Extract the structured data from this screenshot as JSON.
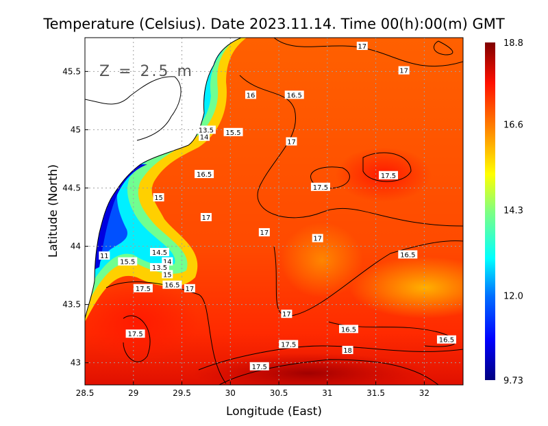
{
  "chart_data": {
    "type": "heatmap",
    "title": "Temperature (Celsius). Date 2023.11.14. Time 00(h):00(m) GMT",
    "annotation": "Z = 2.5 m",
    "xlabel": "Longitude (East)",
    "ylabel": "Latitude (North)",
    "xlim": [
      28.5,
      32.4
    ],
    "ylim": [
      42.81,
      45.79
    ],
    "xticks": [
      "28.5",
      "29",
      "29.5",
      "30",
      "30.5",
      "31",
      "31.5",
      "32"
    ],
    "xtick_values": [
      28.5,
      29,
      29.5,
      30,
      30.5,
      31,
      31.5,
      32
    ],
    "yticks": [
      "45.5",
      "45",
      "44.5",
      "44",
      "43.5",
      "43"
    ],
    "ytick_values": [
      45.5,
      45,
      44.5,
      44,
      43.5,
      43
    ],
    "grid": true,
    "colorbar": {
      "min": 9.73,
      "max": 18.8,
      "labels": [
        "18.8",
        "16.6",
        "14.3",
        "12.0",
        "9.73"
      ],
      "label_values": [
        18.8,
        16.6,
        14.3,
        12.0,
        9.73
      ],
      "colors": [
        "#00007f",
        "#0000ff",
        "#0080ff",
        "#00ffff",
        "#80ff80",
        "#ffff00",
        "#ff8000",
        "#ff0000",
        "#7f0000"
      ]
    },
    "contour_labels": [
      {
        "text": "17",
        "lon": 31.36,
        "lat": 45.72
      },
      {
        "text": "17",
        "lon": 31.79,
        "lat": 45.51
      },
      {
        "text": "16",
        "lon": 30.21,
        "lat": 45.3
      },
      {
        "text": "16.5",
        "lon": 30.66,
        "lat": 45.3
      },
      {
        "text": "13.5",
        "lon": 29.75,
        "lat": 45.0
      },
      {
        "text": "14",
        "lon": 29.73,
        "lat": 44.94
      },
      {
        "text": "15.5",
        "lon": 30.03,
        "lat": 44.98
      },
      {
        "text": "17",
        "lon": 30.63,
        "lat": 44.9
      },
      {
        "text": "16.5",
        "lon": 29.73,
        "lat": 44.62
      },
      {
        "text": "17.5",
        "lon": 30.93,
        "lat": 44.51
      },
      {
        "text": "17.5",
        "lon": 31.63,
        "lat": 44.61
      },
      {
        "text": "15",
        "lon": 29.26,
        "lat": 44.42
      },
      {
        "text": "17",
        "lon": 29.75,
        "lat": 44.25
      },
      {
        "text": "17",
        "lon": 30.35,
        "lat": 44.12
      },
      {
        "text": "17",
        "lon": 30.9,
        "lat": 44.07
      },
      {
        "text": "14.5",
        "lon": 29.27,
        "lat": 43.95
      },
      {
        "text": "14",
        "lon": 29.35,
        "lat": 43.87
      },
      {
        "text": "13.5",
        "lon": 29.27,
        "lat": 43.82
      },
      {
        "text": "15",
        "lon": 29.35,
        "lat": 43.76
      },
      {
        "text": "16.5",
        "lon": 29.4,
        "lat": 43.67
      },
      {
        "text": "17",
        "lon": 29.58,
        "lat": 43.64
      },
      {
        "text": "11",
        "lon": 28.7,
        "lat": 43.92
      },
      {
        "text": "15.5",
        "lon": 28.94,
        "lat": 43.87
      },
      {
        "text": "17.5",
        "lon": 29.1,
        "lat": 43.64
      },
      {
        "text": "16.5",
        "lon": 31.83,
        "lat": 43.93
      },
      {
        "text": "17",
        "lon": 30.58,
        "lat": 43.42
      },
      {
        "text": "16.5",
        "lon": 31.22,
        "lat": 43.29
      },
      {
        "text": "16.5",
        "lon": 32.23,
        "lat": 43.2
      },
      {
        "text": "17.5",
        "lon": 29.02,
        "lat": 43.25
      },
      {
        "text": "17.5",
        "lon": 30.6,
        "lat": 43.16
      },
      {
        "text": "18",
        "lon": 31.21,
        "lat": 43.11
      },
      {
        "text": "17.5",
        "lon": 30.3,
        "lat": 42.97
      }
    ]
  }
}
